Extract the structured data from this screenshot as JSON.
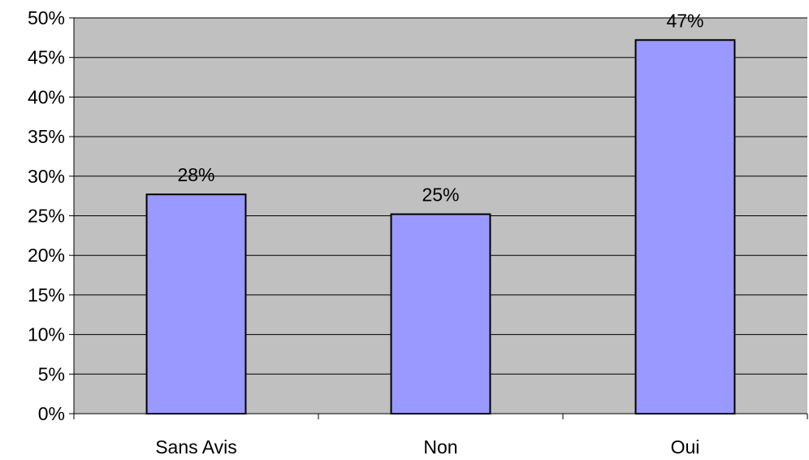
{
  "chart_data": {
    "type": "bar",
    "categories": [
      "Sans Avis",
      "Non",
      "Oui"
    ],
    "values": [
      27.7,
      25.2,
      47.2
    ],
    "data_labels": [
      "28%",
      "25%",
      "47%"
    ],
    "title": "",
    "xlabel": "",
    "ylabel": "",
    "ylim": [
      0,
      50
    ],
    "y_ticks": [
      0,
      5,
      10,
      15,
      20,
      25,
      30,
      35,
      40,
      45,
      50
    ],
    "y_tick_labels": [
      "0%",
      "5%",
      "10%",
      "15%",
      "20%",
      "25%",
      "30%",
      "35%",
      "40%",
      "45%",
      "50%"
    ],
    "grid": true,
    "legend": "none",
    "colors": {
      "plot_background": "#C0C0C0",
      "bar_fill": "#9999FF",
      "bar_stroke": "#000000",
      "grid": "#000000",
      "axis": "#000000"
    }
  }
}
